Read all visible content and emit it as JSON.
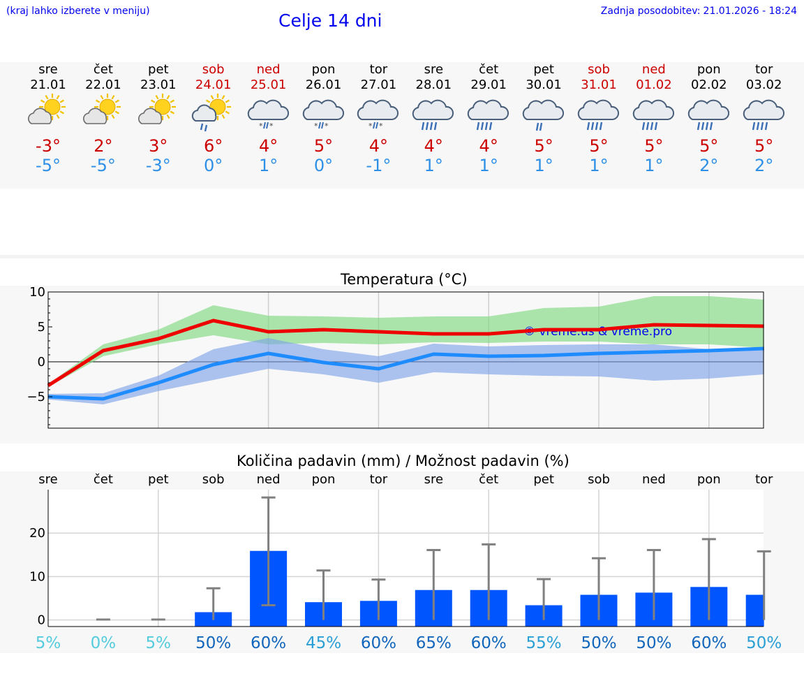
{
  "header": {
    "hint": "(kraj lahko izberete v meniju)",
    "title": "Celje 14 dni",
    "updated_label": "Zadnja posodobitev:",
    "updated_value": "21.01.2026 - 18:24"
  },
  "days": [
    {
      "name": "sre",
      "date": "21.01",
      "tmax": "-3°",
      "tmin": "-5°",
      "icon": "sun-cloud-icon",
      "weekend": false
    },
    {
      "name": "čet",
      "date": "22.01",
      "tmax": "2°",
      "tmin": "-5°",
      "icon": "sun-cloud-icon",
      "weekend": false
    },
    {
      "name": "pet",
      "date": "23.01",
      "tmax": "3°",
      "tmin": "-3°",
      "icon": "sun-cloud-icon",
      "weekend": false
    },
    {
      "name": "sob",
      "date": "24.01",
      "tmax": "6°",
      "tmin": "0°",
      "icon": "sun-cloud-rain-icon",
      "weekend": true
    },
    {
      "name": "ned",
      "date": "25.01",
      "tmax": "4°",
      "tmin": "1°",
      "icon": "cloud-sleet-icon",
      "weekend": true
    },
    {
      "name": "pon",
      "date": "26.01",
      "tmax": "5°",
      "tmin": "0°",
      "icon": "cloud-sleet-icon",
      "weekend": false
    },
    {
      "name": "tor",
      "date": "27.01",
      "tmax": "4°",
      "tmin": "-1°",
      "icon": "cloud-sleet-icon",
      "weekend": false
    },
    {
      "name": "sre",
      "date": "28.01",
      "tmax": "4°",
      "tmin": "1°",
      "icon": "cloud-rain-icon",
      "weekend": false
    },
    {
      "name": "čet",
      "date": "29.01",
      "tmax": "4°",
      "tmin": "1°",
      "icon": "cloud-rain-icon",
      "weekend": false
    },
    {
      "name": "pet",
      "date": "30.01",
      "tmax": "5°",
      "tmin": "1°",
      "icon": "cloud-light-rain-icon",
      "weekend": false
    },
    {
      "name": "sob",
      "date": "31.01",
      "tmax": "5°",
      "tmin": "1°",
      "icon": "cloud-rain-icon",
      "weekend": true
    },
    {
      "name": "ned",
      "date": "01.02",
      "tmax": "5°",
      "tmin": "1°",
      "icon": "cloud-rain-icon",
      "weekend": true
    },
    {
      "name": "pon",
      "date": "02.02",
      "tmax": "5°",
      "tmin": "2°",
      "icon": "cloud-rain-icon",
      "weekend": false
    },
    {
      "name": "tor",
      "date": "03.02",
      "tmax": "5°",
      "tmin": "2°",
      "icon": "cloud-rain-icon",
      "weekend": false
    }
  ],
  "chart_data": [
    {
      "type": "line",
      "title": "Temperatura (°C)",
      "x": [
        0,
        1,
        2,
        3,
        4,
        5,
        6,
        7,
        8,
        9,
        10,
        11,
        12,
        13
      ],
      "ylim": [
        -9.5,
        10
      ],
      "yticks": [
        10,
        5,
        0,
        -5
      ],
      "ytick_labels": [
        "10",
        "5",
        "0",
        "−5"
      ],
      "watermark": "© vreme.us & vreme.pro",
      "series": [
        {
          "name": "max",
          "color": "#ee0000",
          "values": [
            -3.4,
            1.6,
            3.3,
            5.9,
            4.3,
            4.6,
            4.3,
            4.0,
            4.0,
            4.6,
            4.6,
            5.3,
            5.2,
            5.1
          ]
        },
        {
          "name": "min",
          "color": "#1e8cff",
          "values": [
            -5.0,
            -5.3,
            -3.0,
            -0.4,
            1.2,
            -0.1,
            -1.0,
            1.1,
            0.8,
            0.9,
            1.2,
            1.4,
            1.6,
            1.9
          ]
        }
      ],
      "bands": [
        {
          "name": "max-range",
          "color": "#7dd97d",
          "low": [
            -3.6,
            0.8,
            2.5,
            3.8,
            2.5,
            2.7,
            2.5,
            2.8,
            2.7,
            2.9,
            2.9,
            2.5,
            2.5,
            2.0
          ],
          "high": [
            -3.2,
            2.5,
            4.6,
            8.1,
            6.6,
            6.5,
            6.3,
            6.5,
            6.5,
            7.7,
            7.9,
            9.4,
            9.4,
            8.9
          ]
        },
        {
          "name": "min-range",
          "color": "#7ca1ea",
          "low": [
            -5.4,
            -6.1,
            -4.2,
            -2.6,
            -1.0,
            -1.8,
            -3.0,
            -1.5,
            -1.8,
            -2.0,
            -2.1,
            -2.7,
            -2.4,
            -1.8
          ],
          "high": [
            -4.6,
            -4.5,
            -2.0,
            1.8,
            3.4,
            1.8,
            0.8,
            2.6,
            2.2,
            2.4,
            2.5,
            2.5,
            1.8,
            2.1
          ]
        }
      ]
    },
    {
      "type": "bar",
      "title": "Količina padavin (mm) / Možnost padavin (%)",
      "categories": [
        "sre",
        "čet",
        "pet",
        "sob",
        "ned",
        "pon",
        "tor",
        "sre",
        "čet",
        "pet",
        "sob",
        "ned",
        "pon",
        "tor"
      ],
      "values": [
        0,
        0,
        0,
        1.8,
        15.9,
        4.1,
        4.4,
        6.9,
        6.9,
        3.4,
        5.8,
        6.3,
        7.6,
        5.8
      ],
      "error_low": [
        0,
        0,
        0,
        0,
        3.4,
        0,
        0,
        0,
        0,
        0,
        0,
        0,
        0,
        0
      ],
      "error_high": [
        0,
        0.1,
        0.1,
        7.3,
        28.2,
        11.4,
        9.3,
        16.1,
        17.4,
        9.4,
        14.2,
        16.1,
        18.6,
        15.8
      ],
      "ylim": [
        -1.5,
        30
      ],
      "yticks": [
        20,
        10,
        0
      ],
      "bar_color": "#0055ff",
      "probability": [
        "5%",
        "0%",
        "5%",
        "50%",
        "60%",
        "45%",
        "60%",
        "65%",
        "60%",
        "55%",
        "50%",
        "50%",
        "60%",
        "50%"
      ],
      "probability_colors": [
        "#55ccdd",
        "#55ccdd",
        "#55ccdd",
        "#1166bb",
        "#1166bb",
        "#2a9fd6",
        "#1166bb",
        "#1166bb",
        "#1166bb",
        "#2a9fd6",
        "#1166bb",
        "#1166bb",
        "#1166bb",
        "#2a9fd6"
      ]
    }
  ]
}
